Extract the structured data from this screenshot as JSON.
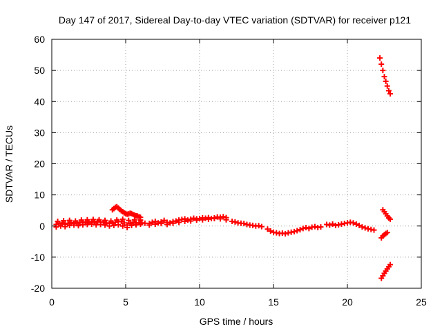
{
  "chart_data": {
    "type": "scatter",
    "title": "Day 147 of 2017, Sidereal Day-to-day VTEC variation (SDTVAR) for receiver p121",
    "xlabel": "GPS time / hours",
    "ylabel": "SDTVAR / TECUs",
    "xlim": [
      0,
      25
    ],
    "ylim": [
      -20,
      60
    ],
    "xticks": [
      0,
      5,
      10,
      15,
      20,
      25
    ],
    "yticks": [
      -20,
      -10,
      0,
      10,
      20,
      30,
      40,
      50,
      60
    ],
    "xtick_labels": [
      "0",
      "5",
      "10",
      "15",
      "20",
      "25"
    ],
    "ytick_labels": [
      "-20",
      "-10",
      "0",
      "10",
      "20",
      "30",
      "40",
      "50",
      "60"
    ],
    "grid": true,
    "marker": "plus",
    "color": "#ff0000",
    "series": [
      {
        "x": [
          0.3,
          0.5,
          0.7,
          0.9,
          1.1,
          1.3,
          1.5,
          1.7,
          1.9,
          2.1,
          2.3,
          2.5,
          2.7,
          2.9,
          3.1,
          3.3,
          3.5,
          3.7,
          3.9,
          4.1,
          4.3,
          4.5,
          4.7,
          4.9,
          5.1,
          5.3,
          5.5,
          5.7,
          5.9,
          6.1,
          6.3
        ],
        "y": [
          0.5,
          0.8,
          1.0,
          0.6,
          0.9,
          1.1,
          0.8,
          1.0,
          1.2,
          1.0,
          1.3,
          1.1,
          1.4,
          1.2,
          1.5,
          1.3,
          1.2,
          1.0,
          0.8,
          1.0,
          1.2,
          1.4,
          1.5,
          1.0,
          0.3,
          0.8,
          1.2,
          0.9,
          1.1,
          1.0,
          0.9
        ]
      },
      {
        "x": [
          0.3,
          0.6,
          0.9,
          1.2,
          1.5,
          1.8,
          2.1,
          2.4,
          2.7,
          3.0,
          3.3,
          3.6,
          3.9,
          4.2,
          4.5,
          4.8,
          5.1,
          5.4,
          5.7,
          6.0
        ],
        "y": [
          -0.3,
          0.0,
          -0.2,
          0.2,
          0.3,
          0.1,
          0.4,
          0.5,
          0.6,
          0.4,
          0.5,
          0.3,
          0.0,
          0.2,
          0.4,
          0.0,
          -0.5,
          0.2,
          0.4,
          0.6
        ]
      },
      {
        "x": [
          0.4,
          0.8,
          1.2,
          1.6,
          2.0,
          2.4,
          2.8,
          3.2,
          3.6,
          4.0,
          4.4,
          4.8,
          5.2,
          5.6,
          6.0
        ],
        "y": [
          1.5,
          1.7,
          1.8,
          1.6,
          1.9,
          2.0,
          2.1,
          2.0,
          1.8,
          1.6,
          1.9,
          2.2,
          1.8,
          2.0,
          1.9
        ]
      },
      {
        "x": [
          4.1,
          4.2,
          4.3,
          4.4,
          4.5,
          4.6,
          4.7,
          4.8,
          4.9,
          5.0,
          5.1,
          5.2,
          5.3,
          5.4,
          5.5,
          5.6,
          5.7,
          5.8,
          5.9,
          6.0
        ],
        "y": [
          5.2,
          5.6,
          6.0,
          6.2,
          5.8,
          5.3,
          4.9,
          4.6,
          4.2,
          4.0,
          3.8,
          3.9,
          4.1,
          4.0,
          3.7,
          3.5,
          3.3,
          3.2,
          3.0,
          2.8
        ]
      },
      {
        "x": [
          6.6,
          6.8,
          7.0,
          7.2,
          7.4,
          7.6,
          7.8,
          8.0,
          8.2,
          8.4,
          8.6,
          8.8,
          9.0,
          9.2,
          9.4,
          9.6,
          9.8,
          10.0,
          10.2,
          10.4,
          10.6,
          10.8,
          11.0,
          11.2,
          11.4,
          11.6,
          11.8
        ],
        "y": [
          0.8,
          1.2,
          1.5,
          1.0,
          1.3,
          1.8,
          1.2,
          1.0,
          1.4,
          1.6,
          1.9,
          2.1,
          2.3,
          1.9,
          2.2,
          2.5,
          2.3,
          2.4,
          2.6,
          2.5,
          2.7,
          2.4,
          2.6,
          2.9,
          2.8,
          3.0,
          2.7
        ]
      },
      {
        "x": [
          6.6,
          7.0,
          7.4,
          7.8,
          8.2,
          8.6,
          9.0,
          9.4,
          9.8,
          10.2,
          10.6,
          11.0,
          11.4,
          11.8
        ],
        "y": [
          0.3,
          0.6,
          0.8,
          0.5,
          0.9,
          1.2,
          1.5,
          1.6,
          1.9,
          2.0,
          2.2,
          2.4,
          2.3,
          2.0
        ]
      },
      {
        "x": [
          12.2,
          12.4,
          12.6,
          12.8,
          13.0,
          13.2,
          13.4,
          13.6,
          13.8,
          14.0,
          14.2
        ],
        "y": [
          1.5,
          1.3,
          1.0,
          0.9,
          0.8,
          0.5,
          0.3,
          0.2,
          0.0,
          0.1,
          -0.2
        ]
      },
      {
        "x": [
          14.6,
          14.8,
          15.0,
          15.2,
          15.4,
          15.6,
          15.8,
          16.0,
          16.2,
          16.4,
          16.6,
          16.8,
          17.0,
          17.2,
          17.4,
          17.6,
          17.8,
          18.0,
          18.2
        ],
        "y": [
          -1.0,
          -1.6,
          -2.0,
          -2.2,
          -2.4,
          -2.3,
          -2.5,
          -2.2,
          -2.0,
          -1.8,
          -1.5,
          -1.2,
          -0.8,
          -0.5,
          -0.8,
          -0.4,
          -0.2,
          -0.5,
          -0.3
        ]
      },
      {
        "x": [
          18.6,
          18.8,
          19.0,
          19.2,
          19.4,
          19.6,
          19.8,
          20.0,
          20.2,
          20.4,
          20.6,
          20.8,
          21.0,
          21.2,
          21.4,
          21.6,
          21.8
        ],
        "y": [
          0.5,
          0.3,
          0.6,
          0.2,
          0.4,
          0.6,
          0.8,
          1.0,
          1.2,
          1.0,
          0.6,
          0.2,
          -0.3,
          -0.6,
          -0.9,
          -1.1,
          -1.3
        ]
      },
      {
        "x": [
          22.2,
          22.3,
          22.4,
          22.5,
          22.6,
          22.7,
          22.8,
          22.9
        ],
        "y": [
          54,
          52,
          50,
          48,
          46.5,
          45,
          43.5,
          42.5
        ]
      },
      {
        "x": [
          22.4,
          22.5,
          22.6,
          22.7,
          22.8,
          22.9
        ],
        "y": [
          5.2,
          4.6,
          3.9,
          3.2,
          2.6,
          2.2
        ]
      },
      {
        "x": [
          22.3,
          22.4,
          22.5,
          22.6,
          22.7
        ],
        "y": [
          -3.8,
          -3.2,
          -2.8,
          -2.4,
          -2.1
        ]
      },
      {
        "x": [
          22.3,
          22.4,
          22.5,
          22.6,
          22.7,
          22.8,
          22.9
        ],
        "y": [
          -16.8,
          -16.0,
          -15.2,
          -14.5,
          -13.8,
          -13.1,
          -12.4
        ]
      }
    ]
  }
}
